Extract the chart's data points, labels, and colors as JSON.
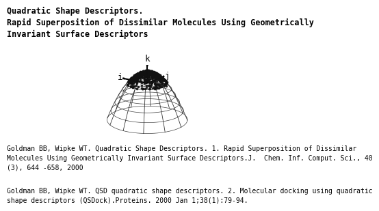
{
  "title_line1": "Quadratic Shape Descriptors.",
  "title_line2": "Rapid Superposition of Dissimilar Molecules Using Geometrically",
  "title_line3": "Invariant Surface Descriptors",
  "ref1": "Goldman BB, Wipke WT. Quadratic Shape Descriptors. 1. Rapid Superposition of Dissimilar\nMolecules Using Geometrically Invariant Surface Descriptors.J.  Chem. Inf. Comput. Sci., 40\n(3), 644 -658, 2000",
  "ref2": "Goldman BB, Wipke WT. QSD quadratic shape descriptors. 2. Molecular docking using quadratic\nshape descriptors (QSDock).Proteins. 2000 Jan 1;38(1):79-94.",
  "bg_color": "#ffffff",
  "wireframe_color": "#222222",
  "dot_color": "#111111",
  "title_fontsize": 8.5,
  "ref_fontsize": 7.0,
  "font_family": "monospace",
  "elev": 18,
  "azim": -55
}
